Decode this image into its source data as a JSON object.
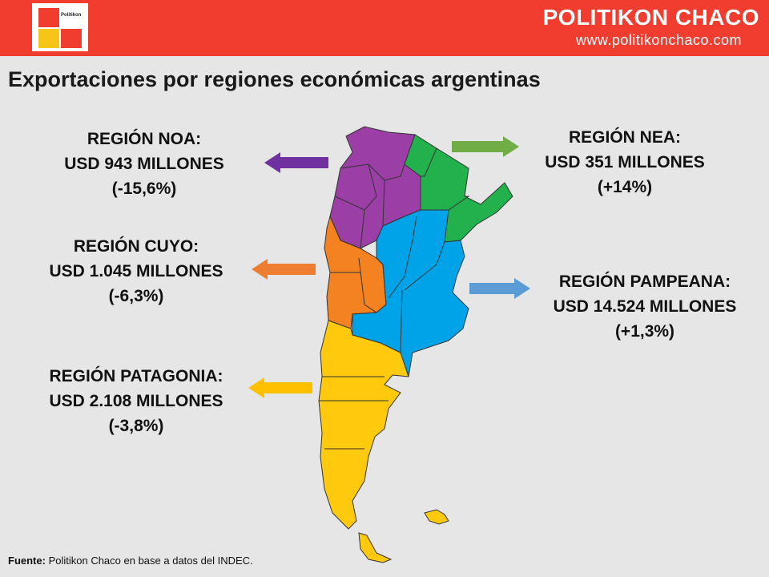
{
  "header": {
    "logo_text": "Politikon",
    "brand": "POLITIKON CHACO",
    "url": "www.politikonchaco.com"
  },
  "title": "Exportaciones por regiones económicas argentinas",
  "regions": {
    "noa": {
      "name": "REGIÓN NOA:",
      "amount": "USD 943 MILLONES",
      "change": "(-15,6%)",
      "color": "#9b3fa6",
      "arrow_color": "#7030a0"
    },
    "nea": {
      "name": "REGIÓN NEA:",
      "amount": "USD 351 MILLONES",
      "change": "(+14%)",
      "color": "#22b14c",
      "arrow_color": "#70ad47"
    },
    "cuyo": {
      "name": "REGIÓN CUYO:",
      "amount": "USD 1.045 MILLONES",
      "change": "(-6,3%)",
      "color": "#f58220",
      "arrow_color": "#ed7d31"
    },
    "pampeana": {
      "name": "REGIÓN PAMPEANA:",
      "amount": "USD 14.524 MILLONES",
      "change": "(+1,3%)",
      "color": "#00a2e8",
      "arrow_color": "#5b9bd5"
    },
    "patagonia": {
      "name": "REGIÓN PATAGONIA:",
      "amount": "USD 2.108 MILLONES",
      "change": "(-3,8%)",
      "color": "#ffc90e",
      "arrow_color": "#ffc000"
    }
  },
  "footer": {
    "source_label": "Fuente:",
    "source_text": " Politikon Chaco en base a datos del INDEC."
  }
}
